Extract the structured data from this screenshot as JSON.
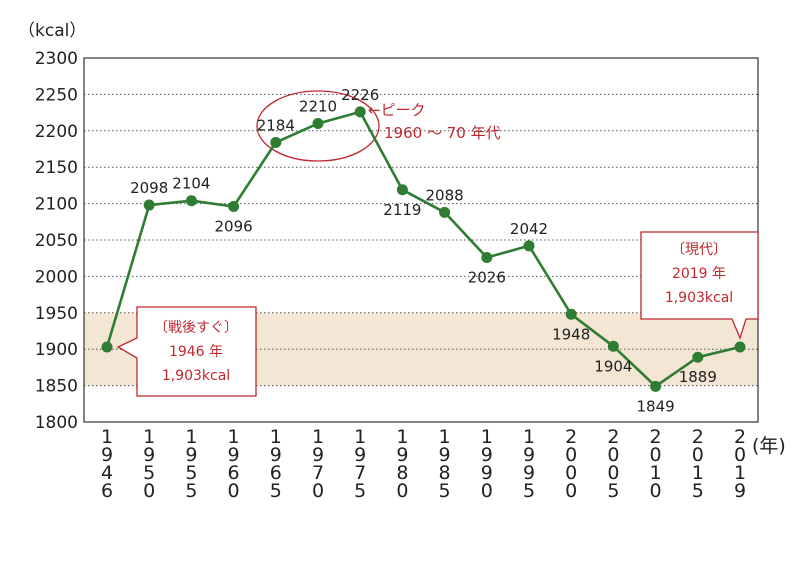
{
  "chart_data": {
    "type": "line",
    "unit_label": "（kcal）",
    "x_unit_label": "(年)",
    "ylim": [
      1800,
      2300
    ],
    "yticks": [
      1800,
      1850,
      1900,
      1950,
      2000,
      2050,
      2100,
      2150,
      2200,
      2250,
      2300
    ],
    "grid": true,
    "highlight_band": [
      1850,
      1950
    ],
    "categories": [
      "1946",
      "1950",
      "1955",
      "1960",
      "1965",
      "1970",
      "1975",
      "1980",
      "1985",
      "1990",
      "1995",
      "2000",
      "2005",
      "2010",
      "2015",
      "2019"
    ],
    "values": [
      1903,
      2098,
      2104,
      2096,
      2184,
      2210,
      2226,
      2119,
      2088,
      2026,
      2042,
      1948,
      1904,
      1849,
      1889,
      1903
    ],
    "data_labels": [
      "",
      "2098",
      "2104",
      "2096",
      "2184",
      "2210",
      "2226",
      "2119",
      "2088",
      "2026",
      "2042",
      "1948",
      "1904",
      "1849",
      "1889",
      ""
    ],
    "label_positions": [
      "",
      "above",
      "above",
      "below",
      "above",
      "above",
      "above",
      "below",
      "above",
      "below",
      "above",
      "below",
      "below",
      "below",
      "below",
      ""
    ],
    "line_color": "#2e7d32",
    "accent_color": "#c0282e",
    "band_color": "#f3e6d4",
    "annotations": {
      "peak": {
        "arrow": "←ピーク",
        "range": "1960 ～ 70 年代"
      },
      "start": {
        "lines": [
          "〔戦後すぐ〕",
          "1946 年",
          "1,903kcal"
        ]
      },
      "current": {
        "lines": [
          "〔現代〕",
          "2019 年",
          "1,903kcal"
        ]
      }
    }
  }
}
